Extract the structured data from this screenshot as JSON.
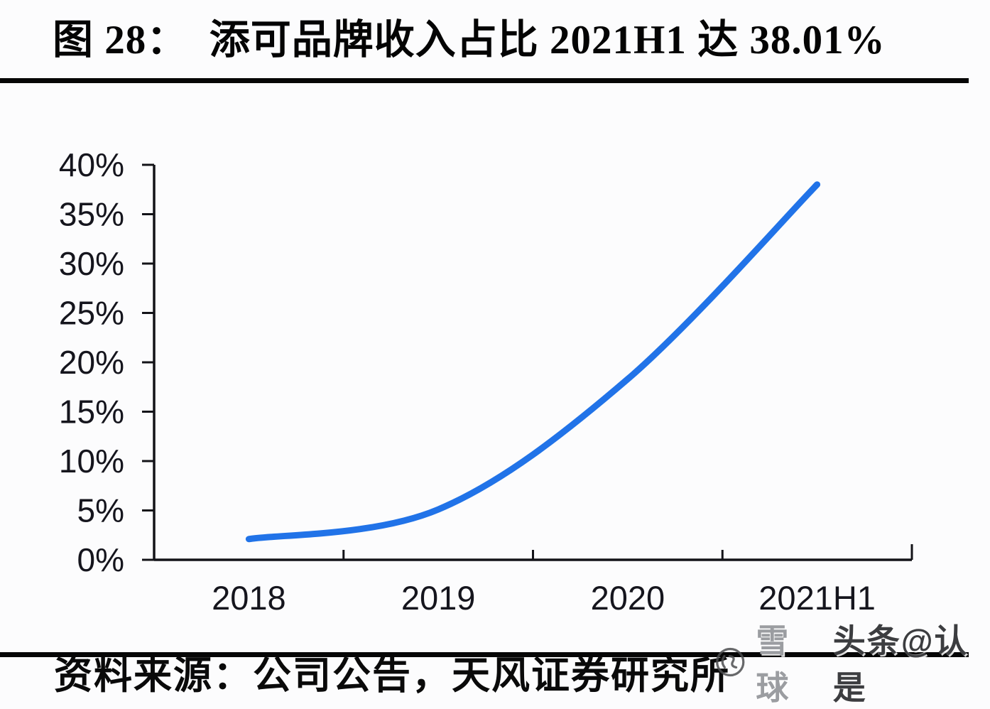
{
  "header": {
    "title": "图 28：  添可品牌收入占比 2021H1 达 38.01%"
  },
  "chart_data": {
    "type": "line",
    "title": "添可品牌收入占比",
    "categories": [
      "2018",
      "2019",
      "2020",
      "2021H1"
    ],
    "series": [
      {
        "name": "添可品牌收入占比",
        "values": [
          2.1,
          5.1,
          18.3,
          38.01
        ]
      }
    ],
    "xlabel": "",
    "ylabel": "",
    "ylim": [
      0,
      40
    ],
    "ytick_step": 5,
    "ytick_labels": [
      "0%",
      "5%",
      "10%",
      "15%",
      "20%",
      "25%",
      "30%",
      "35%",
      "40%"
    ],
    "grid": false,
    "legend": "none",
    "smooth": true,
    "line_color": "#2173e8",
    "axis_color": "#131318",
    "label_color": "#15151d",
    "annotation": "2021H1 达 38.01%"
  },
  "watermark": {
    "logo": "xueqiu-snowball-icon",
    "brand": "雪球",
    "account": "头条@认是"
  },
  "footer": {
    "source_text": "资料来源：公司公告，天风证券研究所"
  }
}
